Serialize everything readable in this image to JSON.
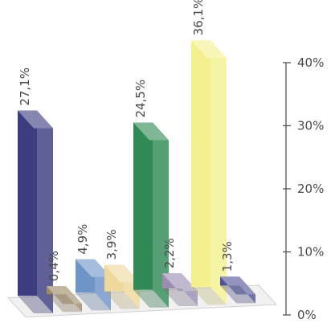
{
  "chart_data": {
    "type": "bar",
    "values": [
      27.1,
      0.4,
      4.9,
      3.9,
      24.5,
      2.2,
      36.1,
      1.3
    ],
    "value_labels": [
      "27,1%",
      "0,4%",
      "4,9%",
      "3,9%",
      "24,5%",
      "2,2%",
      "36,1%",
      "1,3%"
    ],
    "colors": [
      "#3b3d80",
      "#9f8a66",
      "#6f94c8",
      "#eed89c",
      "#2f8a55",
      "#9a8db0",
      "#f4f08e",
      "#4f5295"
    ],
    "y_axis": {
      "position": "right",
      "ticks": [
        0,
        10,
        20,
        30,
        40
      ],
      "tick_labels": [
        "0%",
        "10%",
        "20%",
        "30%",
        "40%"
      ],
      "ylim": [
        0,
        40
      ]
    },
    "grid": false,
    "style": "3d"
  }
}
